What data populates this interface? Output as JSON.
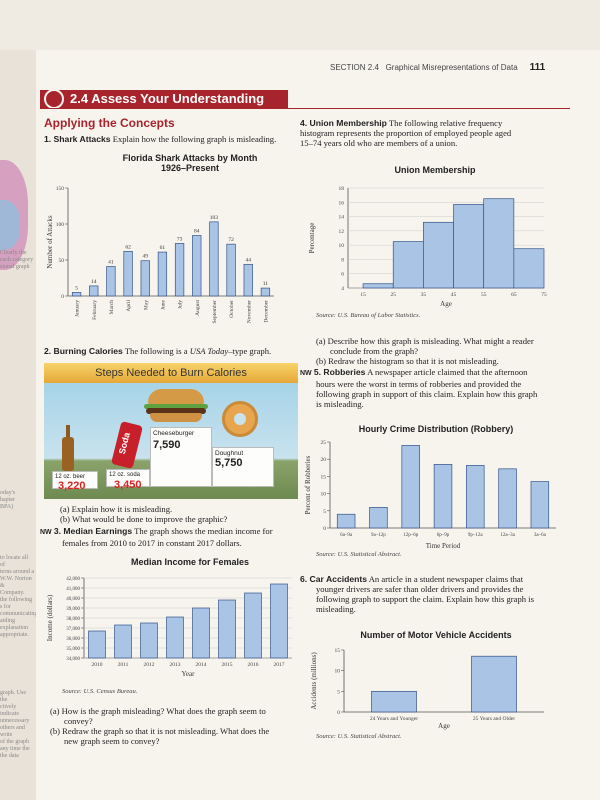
{
  "margin_fragments": [
    "Clearly the",
    "each category",
    "sional graph",
    "oday's",
    "hapter",
    "BPA)",
    "to locate all of",
    "terns around a",
    "W.W. Norton &",
    "Company.",
    "the following",
    "s for communicating",
    "aiding explanation",
    "appropriate.",
    "graph. Use the",
    "ctively indicate",
    "unnecessary",
    "others and write",
    "of the graph",
    "any time the",
    "the data"
  ],
  "header": {
    "section": "SECTION 2.4",
    "section_title": "Graphical Misrepresentations of Data",
    "page_number": "111"
  },
  "banner": {
    "title": "2.4 Assess Your Understanding"
  },
  "section_heading": "Applying the Concepts",
  "q1": {
    "num": "1. Shark Attacks",
    "text": "Explain how the following graph is misleading."
  },
  "chart_sharks": {
    "title_line1": "Florida Shark Attacks by Month",
    "title_line2": "1926–Present"
  },
  "q2": {
    "num": "2. Burning Calories",
    "text": "The following is a",
    "italic": "USA Today",
    "text_end": "–type graph."
  },
  "infographic": {
    "title": "Steps Needed to Burn Calories",
    "items": [
      {
        "label": "12 oz. beer",
        "value": "3,220"
      },
      {
        "label": "12 oz. soda",
        "value": "3,450"
      },
      {
        "label": "Cheeseburger",
        "value": "7,590"
      },
      {
        "label": "Doughnut",
        "value": "5,750"
      }
    ],
    "can_text": "Soda"
  },
  "q2_parts": {
    "a": "(a) Explain how it is misleading.",
    "b": "(b) What would be done to improve the graphic?"
  },
  "q3": {
    "tag": "NW",
    "num": "3. Median Earnings",
    "text": "The graph shows the median income for",
    "text2": "females from 2010 to 2017 in constant 2017 dollars."
  },
  "chart_income": {
    "title": "Median Income for Females"
  },
  "source_income": "Source: U.S. Census Bureau.",
  "q3_parts": {
    "a1": "(a) How is the graph misleading? What does the graph seem to",
    "a2": "convey?",
    "b1": "(b) Redraw the graph so that it is not misleading. What does the",
    "b2": "new graph seem to convey?"
  },
  "q4": {
    "num": "4. Union Membership",
    "l1": "The following relative frequency",
    "l2": "histogram represents the proportion of employed people aged",
    "l3": "15–74 years old who are members of a union."
  },
  "chart_union": {
    "title": "Union Membership"
  },
  "source_union": "Source: U.S. Bureau of Labor Statistics.",
  "q4_parts": {
    "a1": "(a) Describe how this graph is misleading. What might a reader",
    "a2": "conclude from the graph?",
    "b": "(b) Redraw the histogram so that it is not misleading."
  },
  "q5": {
    "tag": "NW",
    "num": "5. Robberies",
    "l1": "A newspaper article claimed that the afternoon",
    "l2": "hours were the worst in terms of robberies and provided the",
    "l3": "following graph in support of this claim. Explain how this graph",
    "l4": "is misleading."
  },
  "chart_crime": {
    "title": "Hourly Crime Distribution (Robbery)"
  },
  "source_crime": "Source: U.S. Statistical Abstract.",
  "q6": {
    "num": "6. Car Accidents",
    "l1": "An article in a student newspaper claims that",
    "l2": "younger drivers are safer than older drivers and provides the",
    "l3": "following graph to support the claim. Explain how this graph is",
    "l4": "misleading."
  },
  "chart_accidents": {
    "title": "Number of Motor Vehicle Accidents"
  },
  "source_accidents": "Source: U.S. Statistical Abstract.",
  "chart_data": [
    {
      "type": "bar",
      "title": "Florida Shark Attacks by Month 1926–Present",
      "ylabel": "Number of Attacks",
      "ylim": [
        0,
        150
      ],
      "yticks": [
        0,
        50,
        100,
        150
      ],
      "categories": [
        "January",
        "February",
        "March",
        "April",
        "May",
        "June",
        "July",
        "August",
        "September",
        "October",
        "November",
        "December"
      ],
      "values": [
        5,
        14,
        41,
        62,
        49,
        61,
        73,
        84,
        103,
        72,
        44,
        11
      ]
    },
    {
      "type": "bar",
      "title": "Union Membership",
      "ylabel": "Percentage",
      "xlabel": "Age",
      "ylim": [
        4,
        18
      ],
      "yticks": [
        4,
        6,
        8,
        10,
        12,
        14,
        16,
        18
      ],
      "xticks": [
        "15",
        "25",
        "35",
        "45",
        "55",
        "65",
        "75"
      ],
      "bins": [
        [
          15,
          25
        ],
        [
          25,
          35
        ],
        [
          35,
          45
        ],
        [
          45,
          55
        ],
        [
          55,
          65
        ],
        [
          65,
          75
        ]
      ],
      "values": [
        4.6,
        10.5,
        13.2,
        15.7,
        16.5,
        9.5
      ]
    },
    {
      "type": "bar",
      "title": "Hourly Crime Distribution (Robbery)",
      "ylabel": "Percent of Robberies",
      "xlabel": "Time Period",
      "ylim": [
        0,
        25
      ],
      "yticks": [
        0,
        5,
        10,
        15,
        20,
        25
      ],
      "categories": [
        "6a–9a",
        "9a–12p",
        "12p–6p",
        "6p–9p",
        "9p–12a",
        "12a–3a",
        "3a–6a"
      ],
      "values": [
        4,
        6,
        24,
        18.5,
        18.2,
        17.2,
        13.5
      ]
    },
    {
      "type": "bar",
      "title": "Median Income for Females",
      "ylabel": "Income (dollars)",
      "xlabel": "Year",
      "ylim": [
        34000,
        42000
      ],
      "yticks": [
        "34,000",
        "35,000",
        "36,000",
        "37,000",
        "38,000",
        "39,000",
        "40,000",
        "41,000",
        "42,000"
      ],
      "categories": [
        "2010",
        "2011",
        "2012",
        "2013",
        "2014",
        "2015",
        "2016",
        "2017"
      ],
      "values": [
        36700,
        37300,
        37500,
        38100,
        39000,
        39800,
        40500,
        41400
      ]
    },
    {
      "type": "bar",
      "title": "Number of Motor Vehicle Accidents",
      "ylabel": "Accidents (millions)",
      "xlabel": "Age",
      "ylim": [
        0,
        15
      ],
      "yticks": [
        0,
        5,
        10,
        15
      ],
      "categories": [
        "24 Years and Younger",
        "25 Years and Older"
      ],
      "values": [
        5,
        13.5
      ]
    }
  ]
}
